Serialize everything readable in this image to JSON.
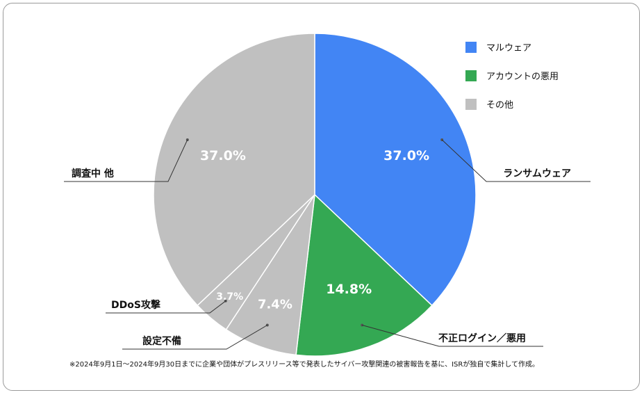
{
  "chart_data": {
    "type": "pie",
    "title": "",
    "slices": [
      {
        "label": "ランサムウェア",
        "value": 37.0,
        "value_label": "37.0%",
        "category": "マルウェア",
        "color": "#4285f4"
      },
      {
        "label": "不正ログイン／悪用",
        "value": 14.8,
        "value_label": "14.8%",
        "category": "アカウントの悪用",
        "color": "#34a853"
      },
      {
        "label": "設定不備",
        "value": 7.4,
        "value_label": "7.4%",
        "category": "その他",
        "color": "#c0c0c0"
      },
      {
        "label": "DDoS攻撃",
        "value": 3.7,
        "value_label": "3.7%",
        "category": "その他",
        "color": "#c0c0c0"
      },
      {
        "label": "調査中 他",
        "value": 37.0,
        "value_label": "37.0%",
        "category": "その他",
        "color": "#c0c0c0"
      }
    ],
    "legend_position": "top-right",
    "legend": [
      {
        "label": "マルウェア",
        "color": "#4285f4"
      },
      {
        "label": "アカウントの悪用",
        "color": "#34a853"
      },
      {
        "label": "その他",
        "color": "#c0c0c0"
      }
    ]
  },
  "footnote": "※2024年9月1日～2024年9月30日までに企業や団体がプレスリリース等で発表したサイバー攻撃関連の被害報告を基に、ISRが独自で集計して作成。"
}
